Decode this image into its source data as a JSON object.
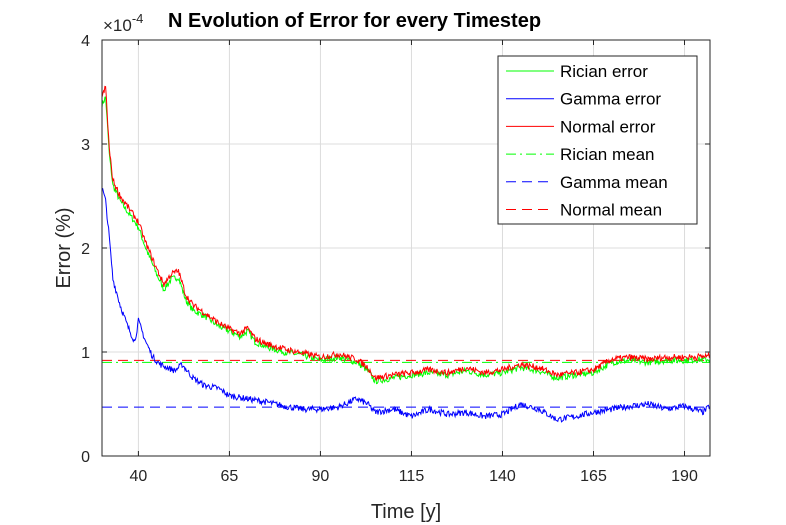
{
  "chart_data": {
    "type": "line",
    "title": "N Evolution of Error for every Timestep",
    "xlabel": "Time [y]",
    "ylabel": "Error (%)",
    "y_multiplier_base": "×10",
    "y_multiplier_exponent": "-4",
    "xlim": [
      30,
      197
    ],
    "ylim": [
      0,
      4
    ],
    "xticks": [
      "40",
      "65",
      "90",
      "115",
      "140",
      "165",
      "190"
    ],
    "yticks": [
      "0",
      "1",
      "2",
      "3",
      "4"
    ],
    "grid": true,
    "legend_position": "top-right",
    "series": [
      {
        "name": "Rician error",
        "color": "#00ff00",
        "style": "solid",
        "points": [
          [
            30,
            3.38
          ],
          [
            31,
            3.45
          ],
          [
            32,
            2.9
          ],
          [
            33,
            2.6
          ],
          [
            35,
            2.45
          ],
          [
            38,
            2.3
          ],
          [
            40,
            2.2
          ],
          [
            42,
            2.0
          ],
          [
            45,
            1.75
          ],
          [
            47,
            1.6
          ],
          [
            49,
            1.7
          ],
          [
            51,
            1.72
          ],
          [
            53,
            1.5
          ],
          [
            55,
            1.4
          ],
          [
            58,
            1.35
          ],
          [
            62,
            1.25
          ],
          [
            65,
            1.2
          ],
          [
            68,
            1.15
          ],
          [
            70,
            1.2
          ],
          [
            72,
            1.1
          ],
          [
            75,
            1.05
          ],
          [
            80,
            1.0
          ],
          [
            85,
            0.97
          ],
          [
            90,
            0.92
          ],
          [
            95,
            0.95
          ],
          [
            100,
            0.9
          ],
          [
            103,
            0.82
          ],
          [
            105,
            0.72
          ],
          [
            110,
            0.75
          ],
          [
            115,
            0.78
          ],
          [
            120,
            0.8
          ],
          [
            125,
            0.78
          ],
          [
            130,
            0.82
          ],
          [
            135,
            0.78
          ],
          [
            140,
            0.8
          ],
          [
            145,
            0.85
          ],
          [
            150,
            0.82
          ],
          [
            155,
            0.75
          ],
          [
            160,
            0.78
          ],
          [
            165,
            0.8
          ],
          [
            170,
            0.9
          ],
          [
            175,
            0.92
          ],
          [
            180,
            0.9
          ],
          [
            185,
            0.92
          ],
          [
            190,
            0.92
          ],
          [
            197,
            0.93
          ]
        ]
      },
      {
        "name": "Gamma error",
        "color": "#0000ff",
        "style": "solid",
        "points": [
          [
            30,
            2.58
          ],
          [
            31,
            2.45
          ],
          [
            32,
            2.1
          ],
          [
            33,
            1.7
          ],
          [
            35,
            1.45
          ],
          [
            37,
            1.25
          ],
          [
            39,
            1.1
          ],
          [
            40,
            1.3
          ],
          [
            42,
            1.1
          ],
          [
            44,
            0.95
          ],
          [
            46,
            0.88
          ],
          [
            48,
            0.85
          ],
          [
            50,
            0.82
          ],
          [
            52,
            0.88
          ],
          [
            55,
            0.75
          ],
          [
            58,
            0.68
          ],
          [
            62,
            0.65
          ],
          [
            65,
            0.58
          ],
          [
            70,
            0.55
          ],
          [
            75,
            0.52
          ],
          [
            80,
            0.48
          ],
          [
            85,
            0.45
          ],
          [
            90,
            0.45
          ],
          [
            95,
            0.47
          ],
          [
            100,
            0.55
          ],
          [
            103,
            0.5
          ],
          [
            105,
            0.42
          ],
          [
            110,
            0.45
          ],
          [
            115,
            0.38
          ],
          [
            120,
            0.45
          ],
          [
            125,
            0.4
          ],
          [
            130,
            0.42
          ],
          [
            135,
            0.38
          ],
          [
            140,
            0.4
          ],
          [
            145,
            0.5
          ],
          [
            150,
            0.45
          ],
          [
            155,
            0.35
          ],
          [
            160,
            0.38
          ],
          [
            165,
            0.42
          ],
          [
            170,
            0.45
          ],
          [
            175,
            0.48
          ],
          [
            180,
            0.5
          ],
          [
            185,
            0.45
          ],
          [
            190,
            0.48
          ],
          [
            195,
            0.42
          ],
          [
            197,
            0.48
          ]
        ]
      },
      {
        "name": "Normal error",
        "color": "#ff0000",
        "style": "solid",
        "points": [
          [
            30,
            3.45
          ],
          [
            31,
            3.55
          ],
          [
            32,
            2.95
          ],
          [
            33,
            2.65
          ],
          [
            35,
            2.5
          ],
          [
            38,
            2.35
          ],
          [
            40,
            2.25
          ],
          [
            42,
            2.05
          ],
          [
            45,
            1.8
          ],
          [
            47,
            1.65
          ],
          [
            49,
            1.75
          ],
          [
            51,
            1.78
          ],
          [
            53,
            1.55
          ],
          [
            55,
            1.45
          ],
          [
            58,
            1.38
          ],
          [
            62,
            1.28
          ],
          [
            65,
            1.22
          ],
          [
            68,
            1.18
          ],
          [
            70,
            1.23
          ],
          [
            72,
            1.13
          ],
          [
            75,
            1.08
          ],
          [
            80,
            1.03
          ],
          [
            85,
            0.99
          ],
          [
            90,
            0.95
          ],
          [
            95,
            0.98
          ],
          [
            100,
            0.93
          ],
          [
            103,
            0.85
          ],
          [
            105,
            0.75
          ],
          [
            110,
            0.78
          ],
          [
            115,
            0.8
          ],
          [
            120,
            0.83
          ],
          [
            125,
            0.8
          ],
          [
            130,
            0.85
          ],
          [
            135,
            0.8
          ],
          [
            140,
            0.83
          ],
          [
            145,
            0.88
          ],
          [
            150,
            0.85
          ],
          [
            155,
            0.78
          ],
          [
            160,
            0.8
          ],
          [
            165,
            0.83
          ],
          [
            170,
            0.93
          ],
          [
            175,
            0.95
          ],
          [
            180,
            0.93
          ],
          [
            185,
            0.95
          ],
          [
            190,
            0.95
          ],
          [
            197,
            0.96
          ]
        ]
      },
      {
        "name": "Rician mean",
        "color": "#00ff00",
        "style": "dashdot",
        "value": 0.9
      },
      {
        "name": "Gamma mean",
        "color": "#0000ff",
        "style": "dashed",
        "value": 0.47
      },
      {
        "name": "Normal mean",
        "color": "#ff0000",
        "style": "dashed",
        "value": 0.92
      }
    ]
  }
}
